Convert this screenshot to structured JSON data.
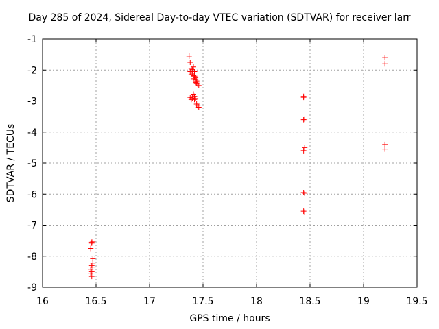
{
  "chart_data": {
    "type": "scatter",
    "title": "Day 285 of 2024, Sidereal Day-to-day VTEC variation (SDTVAR) for receiver larr",
    "xlabel": "GPS time / hours",
    "ylabel": "SDTVAR / TECUs",
    "xlim": [
      16,
      19.5
    ],
    "ylim": [
      -9,
      -1
    ],
    "xticks": [
      "16",
      "16.5",
      "17",
      "17.5",
      "18",
      "18.5",
      "19",
      "19.5"
    ],
    "yticks": [
      "-1",
      "-2",
      "-3",
      "-4",
      "-5",
      "-6",
      "-7",
      "-8",
      "-9"
    ],
    "grid": true,
    "marker": "plus",
    "color": "#ff0000",
    "series": [
      {
        "name": "SDTVAR",
        "points": [
          [
            16.46,
            -7.55
          ],
          [
            16.47,
            -7.52
          ],
          [
            16.46,
            -7.58
          ],
          [
            16.45,
            -7.75
          ],
          [
            16.47,
            -8.08
          ],
          [
            16.47,
            -8.22
          ],
          [
            16.46,
            -8.3
          ],
          [
            16.47,
            -8.35
          ],
          [
            16.45,
            -8.42
          ],
          [
            16.46,
            -8.5
          ],
          [
            16.45,
            -8.55
          ],
          [
            16.46,
            -8.65
          ],
          [
            17.37,
            -1.55
          ],
          [
            17.38,
            -1.75
          ],
          [
            17.39,
            -1.95
          ],
          [
            17.38,
            -2.05
          ],
          [
            17.4,
            -1.98
          ],
          [
            17.41,
            -1.9
          ],
          [
            17.4,
            -2.1
          ],
          [
            17.41,
            -2.18
          ],
          [
            17.42,
            -2.05
          ],
          [
            17.42,
            -2.2
          ],
          [
            17.43,
            -2.25
          ],
          [
            17.43,
            -2.3
          ],
          [
            17.44,
            -2.35
          ],
          [
            17.44,
            -2.42
          ],
          [
            17.45,
            -2.38
          ],
          [
            17.45,
            -2.45
          ],
          [
            17.46,
            -2.5
          ],
          [
            17.39,
            -2.15
          ],
          [
            17.41,
            -2.28
          ],
          [
            17.43,
            -2.4
          ],
          [
            17.38,
            -2.88
          ],
          [
            17.39,
            -2.95
          ],
          [
            17.4,
            -2.9
          ],
          [
            17.41,
            -2.78
          ],
          [
            17.42,
            -2.85
          ],
          [
            17.42,
            -2.95
          ],
          [
            17.43,
            -2.92
          ],
          [
            17.44,
            -3.1
          ],
          [
            17.45,
            -3.15
          ],
          [
            17.46,
            -3.2
          ],
          [
            18.44,
            -2.85
          ],
          [
            18.44,
            -2.88
          ],
          [
            18.44,
            -3.6
          ],
          [
            18.45,
            -3.58
          ],
          [
            18.45,
            -4.5
          ],
          [
            18.44,
            -4.6
          ],
          [
            18.44,
            -5.95
          ],
          [
            18.45,
            -5.97
          ],
          [
            18.44,
            -6.55
          ],
          [
            18.45,
            -6.58
          ],
          [
            19.2,
            -1.6
          ],
          [
            19.2,
            -1.8
          ],
          [
            19.2,
            -4.4
          ],
          [
            19.2,
            -4.55
          ]
        ]
      }
    ]
  }
}
